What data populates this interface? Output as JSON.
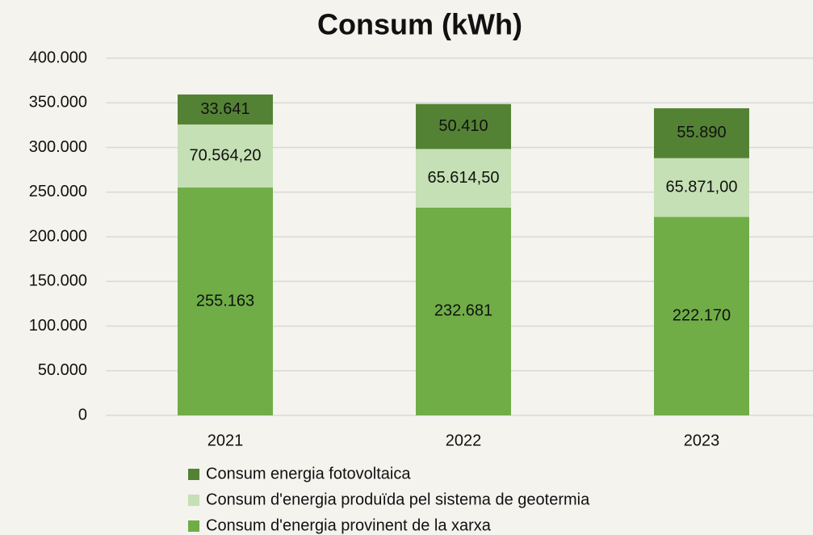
{
  "chart_data": {
    "type": "stacked_bar",
    "title": "Consum (kWh)",
    "categories": [
      "2021",
      "2022",
      "2023"
    ],
    "series": [
      {
        "name": "Consum d'energia provinent de la xarxa",
        "color": "#70ad47",
        "values": [
          255163,
          232681,
          222170
        ],
        "value_labels": [
          "255.163",
          "232.681",
          "222.170"
        ]
      },
      {
        "name": "Consum d'energia produïda pel sistema de geotermia",
        "color": "#c5e0b4",
        "values": [
          70564.2,
          65614.5,
          65871
        ],
        "value_labels": [
          "70.564,20",
          "65.614,50",
          "65.871,00"
        ]
      },
      {
        "name": "Consum energia fotovoltaica",
        "color": "#548235",
        "values": [
          33641,
          50410,
          55890
        ],
        "value_labels": [
          "33.641",
          "50.410",
          "55.890"
        ]
      }
    ],
    "ylim": [
      0,
      400000
    ],
    "yticks": [
      0,
      {
        "value": 50000,
        "label": "50.000"
      },
      {
        "value": 100000,
        "label": "100.000"
      },
      {
        "value": 150000,
        "label": "150.000"
      },
      {
        "value": 200000,
        "label": "200.000"
      },
      {
        "value": 250000,
        "label": "250.000"
      },
      {
        "value": 300000,
        "label": "300.000"
      },
      {
        "value": 350000,
        "label": "350.000"
      },
      {
        "value": 400000,
        "label": "400.000"
      }
    ],
    "grid": true
  }
}
